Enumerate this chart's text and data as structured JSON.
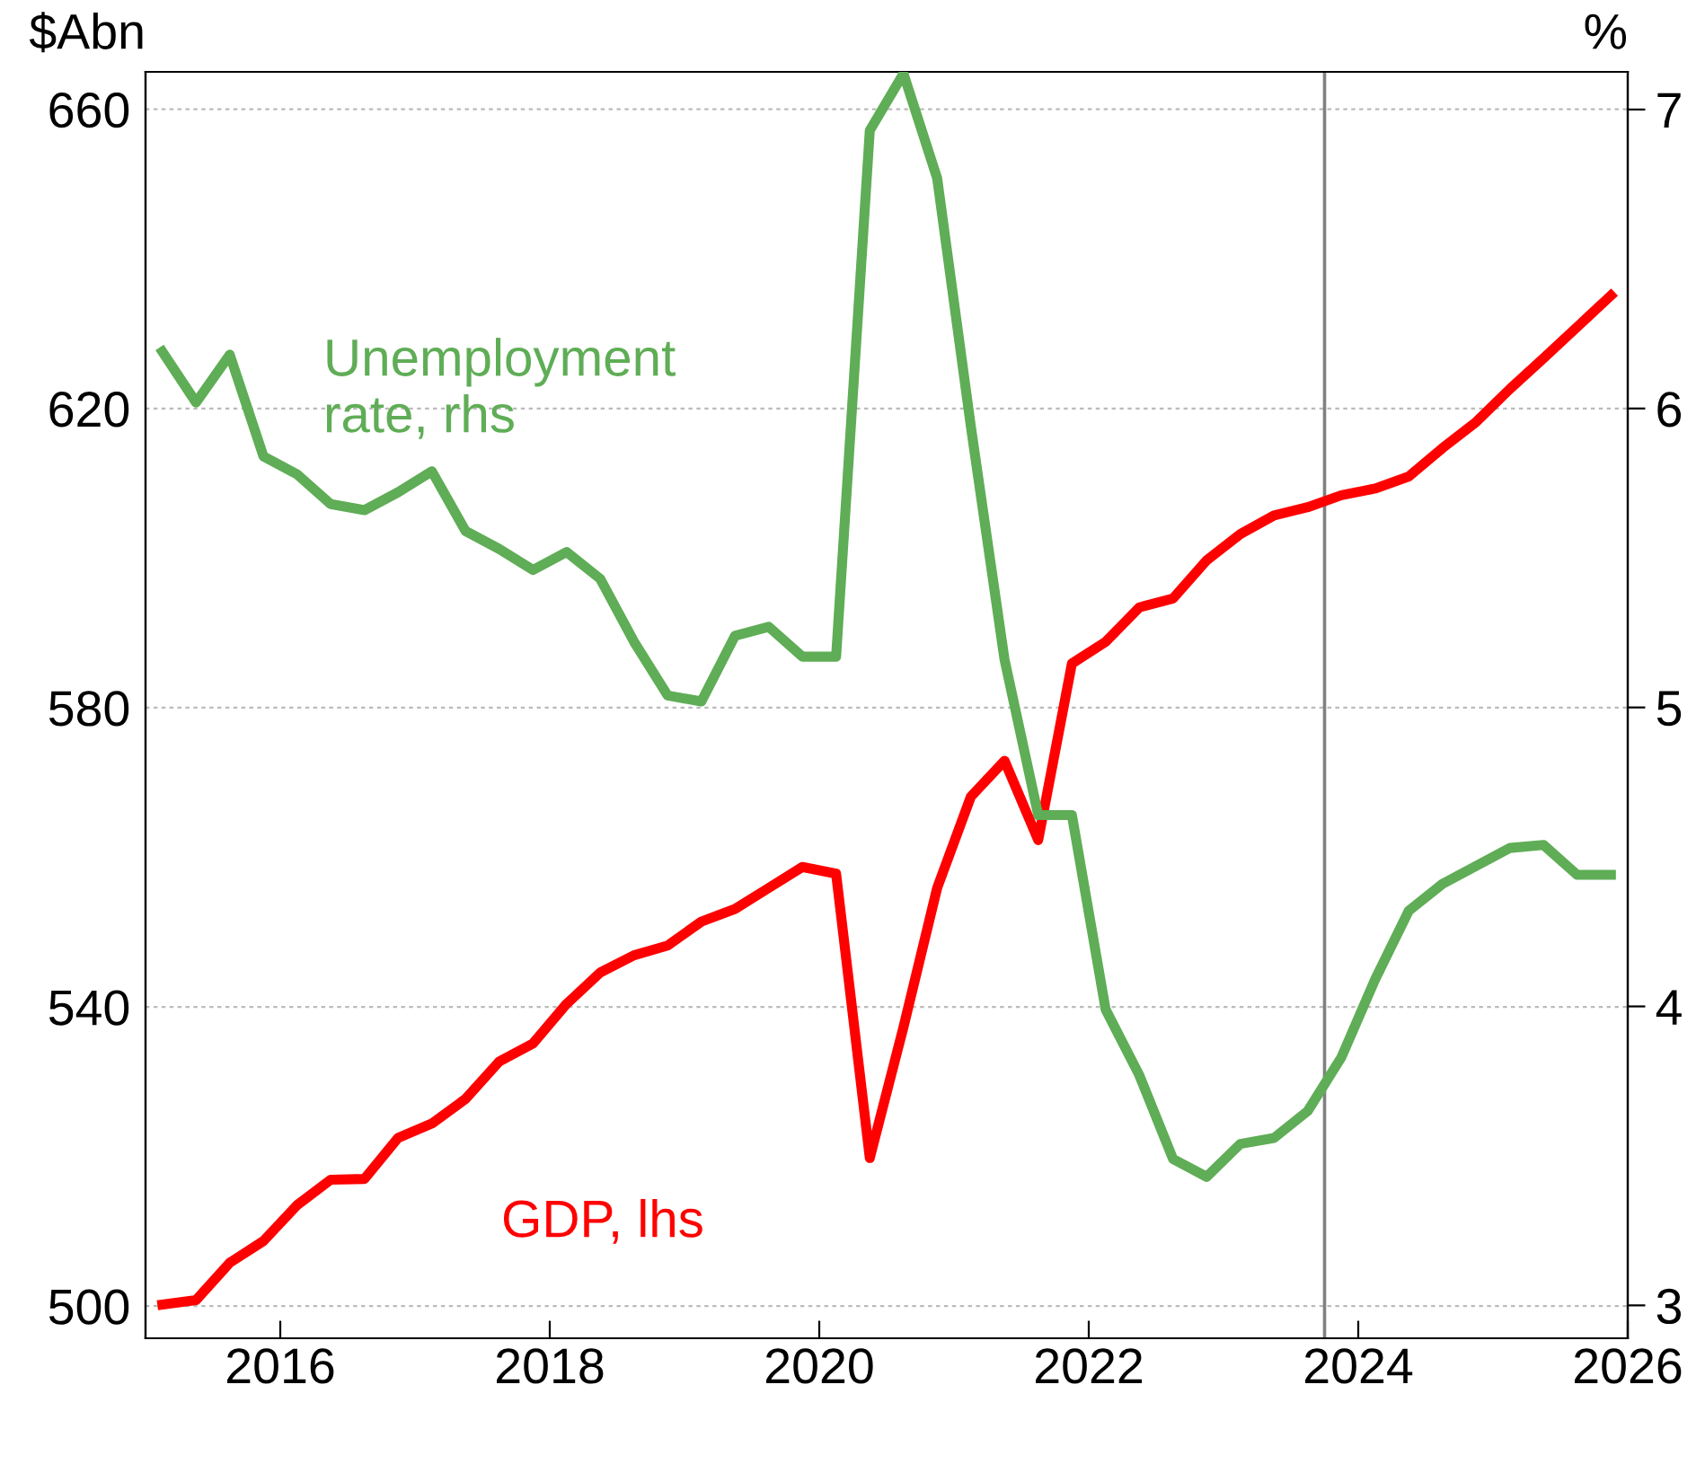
{
  "chart_data": {
    "type": "line",
    "ylabel": "$Abn",
    "y2label": "%",
    "x": [
      2015.125,
      2015.375,
      2015.625,
      2015.875,
      2016.125,
      2016.375,
      2016.625,
      2016.875,
      2017.125,
      2017.375,
      2017.625,
      2017.875,
      2018.125,
      2018.375,
      2018.625,
      2018.875,
      2019.125,
      2019.375,
      2019.625,
      2019.875,
      2020.125,
      2020.375,
      2020.625,
      2020.875,
      2021.125,
      2021.375,
      2021.625,
      2021.875,
      2022.125,
      2022.375,
      2022.625,
      2022.875,
      2023.125,
      2023.375,
      2023.625,
      2023.875,
      2024.125,
      2024.375,
      2024.625,
      2024.875,
      2025.125,
      2025.375,
      2025.625,
      2025.875
    ],
    "series": [
      {
        "name": "GDP, lhs",
        "color": "#ff0000",
        "values": [
          500.2,
          500.8,
          505.8,
          508.7,
          513.5,
          516.9,
          517.0,
          522.5,
          524.4,
          527.7,
          532.7,
          535.1,
          540.4,
          544.6,
          546.9,
          548.2,
          551.4,
          553.1,
          555.9,
          558.7,
          557.8,
          519.8,
          537.3,
          555.9,
          568.1,
          572.9,
          562.3,
          585.9,
          588.8,
          593.4,
          594.6,
          599.7,
          603.2,
          605.7,
          606.8,
          608.4,
          609.3,
          610.9,
          614.7,
          618.2,
          622.6,
          626.7,
          630.9,
          635.1
        ]
      },
      {
        "name": "Unemployment rate, rhs",
        "color": "#5fad56",
        "axis": "y2",
        "values": [
          6.19,
          6.02,
          6.18,
          5.84,
          5.78,
          5.68,
          5.66,
          5.72,
          5.79,
          5.59,
          5.53,
          5.46,
          5.52,
          5.43,
          5.22,
          5.04,
          5.02,
          5.24,
          5.27,
          5.17,
          5.17,
          6.93,
          7.12,
          6.77,
          5.94,
          5.16,
          4.64,
          4.64,
          3.99,
          3.77,
          3.49,
          3.43,
          3.54,
          3.56,
          3.65,
          3.83,
          4.09,
          4.32,
          4.41,
          4.47,
          4.53,
          4.54,
          4.44,
          4.44
        ]
      }
    ],
    "xlim": [
      2015,
      2026
    ],
    "xticks": [
      2016,
      2018,
      2020,
      2022,
      2024,
      2026
    ],
    "ylim": [
      495.7,
      665
    ],
    "yticks": [
      500,
      540,
      580,
      620,
      660
    ],
    "y2lim": [
      2.89,
      7.126
    ],
    "y2ticks": [
      3,
      4,
      5,
      6,
      7
    ],
    "ref_lines": [
      {
        "axis": "x",
        "value": 2023.75,
        "color": "#808080"
      }
    ],
    "grid": "y",
    "legend": false,
    "line_style": "solid",
    "marker": "none"
  }
}
